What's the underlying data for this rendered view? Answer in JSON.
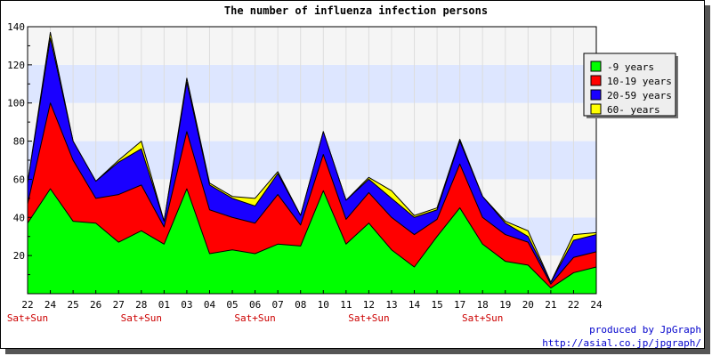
{
  "chart_data": {
    "type": "area",
    "stacked": true,
    "title": "The number of influenza infection persons",
    "x": [
      "22",
      "24",
      "25",
      "26",
      "27",
      "28",
      "01",
      "03",
      "04",
      "05",
      "06",
      "07",
      "08",
      "10",
      "11",
      "12",
      "13",
      "14",
      "15",
      "17",
      "18",
      "19",
      "20",
      "21",
      "22",
      "24"
    ],
    "weekend_label": "Sat+Sun",
    "weekend_indices": [
      0,
      5,
      10,
      15,
      20
    ],
    "ylim": [
      0,
      140
    ],
    "yticks": [
      20,
      40,
      60,
      80,
      100,
      120,
      140
    ],
    "grid": true,
    "band_colors": [
      "#f5f5f5",
      "#dde6ff"
    ],
    "legend_position": "top-right",
    "series": [
      {
        "name": "-9 years",
        "color": "#00ff00",
        "values": [
          37,
          55,
          38,
          37,
          27,
          33,
          26,
          55,
          21,
          23,
          21,
          26,
          25,
          54,
          26,
          37,
          23,
          14,
          30,
          45,
          26,
          17,
          15,
          3,
          11,
          14
        ]
      },
      {
        "name": "10-19 years",
        "color": "#ff0000",
        "values": [
          10,
          45,
          32,
          13,
          25,
          24,
          9,
          30,
          23,
          17,
          16,
          26,
          11,
          19,
          13,
          16,
          17,
          17,
          9,
          23,
          14,
          14,
          12,
          2,
          8,
          8
        ]
      },
      {
        "name": "20-59 years",
        "color": "#1a00ff",
        "values": [
          11,
          34,
          10,
          9,
          17,
          19,
          3,
          26,
          13,
          10,
          9,
          11,
          5,
          12,
          10,
          7,
          10,
          9,
          5,
          12,
          11,
          6,
          3,
          1,
          9,
          9
        ]
      },
      {
        "name": "60- years",
        "color": "#ffff00",
        "values": [
          0,
          3,
          0,
          0,
          1,
          4,
          0,
          2,
          1,
          1,
          4,
          1,
          0,
          0,
          0,
          1,
          4,
          1,
          1,
          1,
          0,
          1,
          3,
          0,
          3,
          1
        ]
      }
    ]
  },
  "credit": {
    "line1": "produced by JpGraph",
    "line2": "http://asial.co.jp/jpgraph/"
  }
}
